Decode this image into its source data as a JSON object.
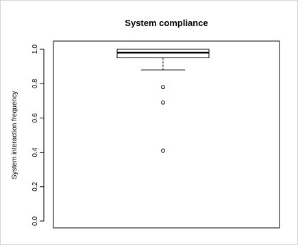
{
  "chart_data": {
    "type": "boxplot",
    "title": "System compliance",
    "xlabel": "",
    "ylabel": "System interaction frequency",
    "ylim": [
      0,
      1.0
    ],
    "yticks": [
      0.0,
      0.2,
      0.4,
      0.6,
      0.8,
      1.0
    ],
    "ytick_labels": [
      "0.0",
      "0.2",
      "0.4",
      "0.6",
      "0.8",
      "1.0"
    ],
    "grid": false,
    "legend": "none",
    "box": {
      "q1": 0.95,
      "median": 0.98,
      "q3": 1.0,
      "whisker_low": 0.88,
      "whisker_high": 1.0
    },
    "outliers": [
      0.78,
      0.69,
      0.41
    ]
  },
  "colors": {
    "stroke": "#000000",
    "box_fill": "#ffffff",
    "background": "#ffffff"
  }
}
